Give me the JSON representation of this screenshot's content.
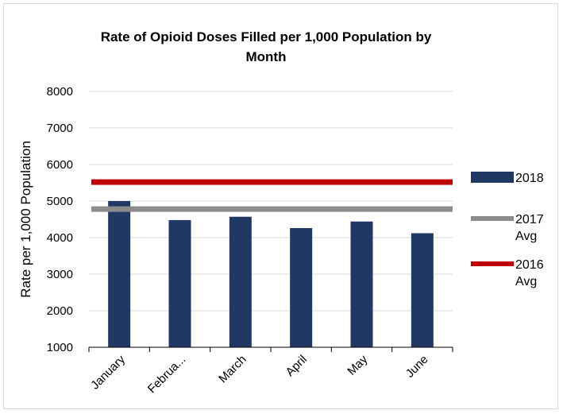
{
  "chart_data": {
    "type": "bar",
    "title_lines": [
      "Rate of Opioid Doses Filled per 1,000 Population by",
      "Month"
    ],
    "xlabel": "",
    "ylabel": "Rate per 1,000 Population",
    "categories": [
      "January",
      "Februa...",
      "March",
      "April",
      "May",
      "June"
    ],
    "ylim": [
      1000,
      8000
    ],
    "yticks": [
      "1000",
      "2000",
      "3000",
      "4000",
      "5000",
      "6000",
      "7000",
      "8000"
    ],
    "grid": true,
    "legend_position": "right",
    "series": [
      {
        "name": "2018",
        "kind": "bar",
        "color": "#1f3864",
        "values": [
          5000,
          4480,
          4570,
          4260,
          4440,
          4120
        ]
      },
      {
        "name": "2017 Avg",
        "kind": "line",
        "color": "#8c8c8c",
        "value": 4780
      },
      {
        "name": "2016 Avg",
        "kind": "line",
        "color": "#c00000",
        "value": 5520
      }
    ],
    "legend": [
      {
        "lines": [
          "2018"
        ],
        "series": 0
      },
      {
        "lines": [
          "2017",
          "Avg"
        ],
        "series": 1
      },
      {
        "lines": [
          "2016",
          "Avg"
        ],
        "series": 2
      }
    ]
  }
}
